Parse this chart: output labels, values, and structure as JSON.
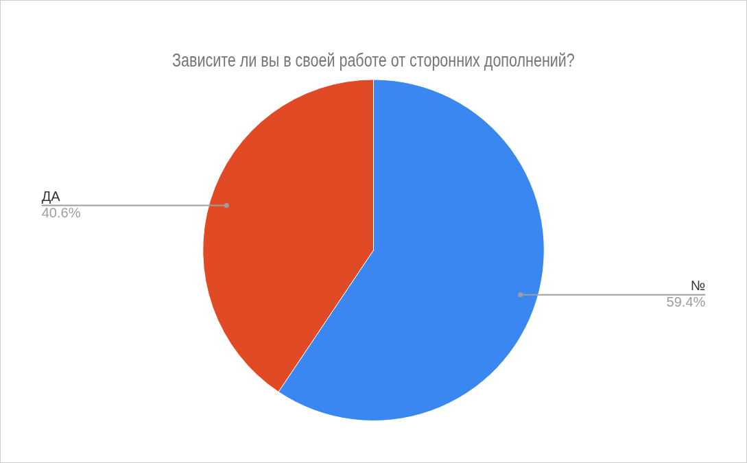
{
  "chart_data": {
    "type": "pie",
    "title": "Зависите ли вы в своей работе от сторонних дополнений?",
    "categories": [
      "№",
      "ДА"
    ],
    "values": [
      59.4,
      40.6
    ],
    "colors": [
      "#3b87f2",
      "#e04a25"
    ],
    "value_labels": [
      "59.4%",
      "40.6%"
    ],
    "legend": false
  }
}
